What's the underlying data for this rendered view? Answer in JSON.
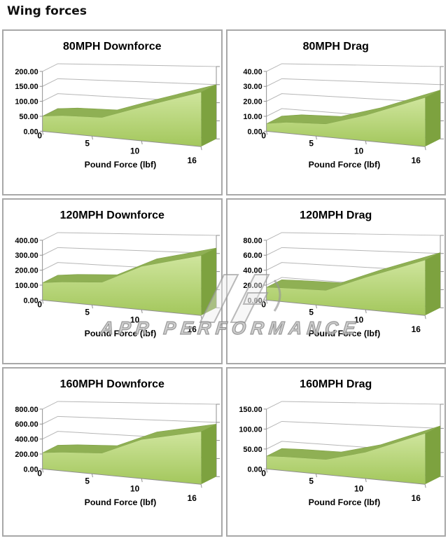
{
  "page_title": "Wing forces",
  "watermark": {
    "text": "APR PERFORMANCE",
    "logo_icon": "apr-logo"
  },
  "colors": {
    "area_top": "#cfe59d",
    "area_bottom": "#a3c75c",
    "ribbon": "#8fb054",
    "side_face": "#7da23f",
    "edge": "#7fa046",
    "grid": "#b6b6b6",
    "axis": "#8f8f8f",
    "panel_border": "#a8a8a8",
    "text": "#000000",
    "watermark_gray": "#9b9b9b"
  },
  "chart_data": [
    {
      "type": "area",
      "title": "80MPH Downforce",
      "xlabel": "Pound Force (lbf)",
      "x": [
        0,
        2,
        6,
        10,
        16
      ],
      "values": [
        50,
        57,
        60,
        100,
        150
      ],
      "xticks": [
        0,
        5,
        10,
        16
      ],
      "yticks": [
        0,
        50,
        100,
        150,
        200
      ],
      "ylim": [
        0,
        200
      ]
    },
    {
      "type": "area",
      "title": "80MPH Drag",
      "xlabel": "Pound Force (lbf)",
      "x": [
        0,
        2,
        6,
        10,
        16
      ],
      "values": [
        5,
        7,
        8,
        15,
        27
      ],
      "xticks": [
        0,
        5,
        10,
        16
      ],
      "yticks": [
        0,
        10,
        20,
        30,
        40
      ],
      "ylim": [
        0,
        40
      ]
    },
    {
      "type": "area",
      "title": "120MPH Downforce",
      "xlabel": "Pound Force (lbf)",
      "x": [
        0,
        2,
        6,
        10,
        16
      ],
      "values": [
        115,
        130,
        145,
        255,
        330
      ],
      "xticks": [
        0,
        5,
        10,
        16
      ],
      "yticks": [
        0,
        100,
        200,
        300,
        400
      ],
      "ylim": [
        0,
        400
      ]
    },
    {
      "type": "area",
      "title": "120MPH Drag",
      "xlabel": "Pound Force (lbf)",
      "x": [
        0,
        2,
        6,
        10,
        16
      ],
      "values": [
        17,
        18,
        19,
        38,
        61
      ],
      "xticks": [
        0,
        5,
        10,
        16
      ],
      "yticks": [
        0,
        20,
        40,
        60,
        80
      ],
      "ylim": [
        0,
        80
      ]
    },
    {
      "type": "area",
      "title": "160MPH Downforce",
      "xlabel": "Pound Force (lbf)",
      "x": [
        0,
        2,
        6,
        10,
        16
      ],
      "values": [
        215,
        240,
        265,
        460,
        580
      ],
      "xticks": [
        0,
        5,
        10,
        16
      ],
      "yticks": [
        0,
        200,
        400,
        600,
        800
      ],
      "ylim": [
        0,
        800
      ]
    },
    {
      "type": "area",
      "title": "160MPH Drag",
      "xlabel": "Pound Force (lbf)",
      "x": [
        0,
        2,
        6,
        10,
        16
      ],
      "values": [
        32,
        34,
        35,
        58,
        105
      ],
      "xticks": [
        0,
        5,
        10,
        16
      ],
      "yticks": [
        0,
        50,
        100,
        150
      ],
      "ylim": [
        0,
        150
      ]
    }
  ]
}
